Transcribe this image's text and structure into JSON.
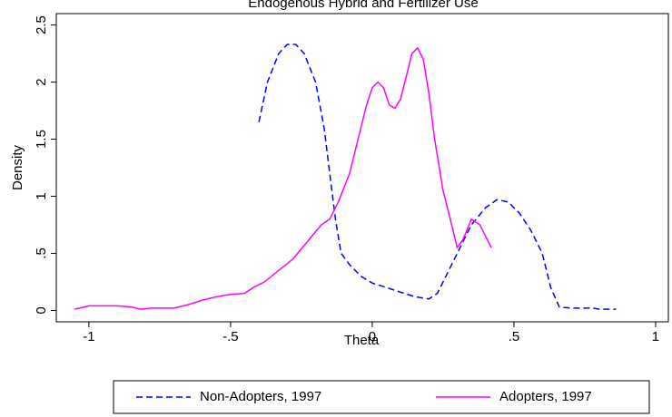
{
  "chart_data": {
    "type": "line",
    "title": "Endogenous Hybrid and Fertilizer Use",
    "x_label": "Theta",
    "y_label": "Density",
    "xlim": [
      -1.115,
      1.045
    ],
    "ylim": [
      -0.1,
      2.6
    ],
    "xticks": [
      -1,
      {
        "value": -0.5,
        "label": "-.5"
      },
      0,
      {
        "value": 0.5,
        "label": ".5"
      },
      1
    ],
    "yticks": [
      0,
      {
        "value": 0.5,
        "label": ".5"
      },
      1,
      1.5,
      2,
      2.5
    ],
    "series": [
      {
        "name": "Non-Adopters, 1997",
        "color": "#0000ff",
        "dash": true,
        "x": [
          -0.4,
          -0.37,
          -0.33,
          -0.3,
          -0.27,
          -0.24,
          -0.2,
          -0.17,
          -0.15,
          -0.13,
          -0.11,
          -0.08,
          -0.04,
          0,
          0.05,
          0.1,
          0.15,
          0.2,
          0.23,
          0.26,
          0.3,
          0.35,
          0.4,
          0.44,
          0.48,
          0.52,
          0.56,
          0.6,
          0.63,
          0.66,
          0.7,
          0.78,
          0.8,
          0.86
        ],
        "values": [
          1.65,
          2.0,
          2.25,
          2.33,
          2.33,
          2.25,
          2.0,
          1.6,
          1.2,
          0.8,
          0.5,
          0.4,
          0.3,
          0.24,
          0.2,
          0.16,
          0.12,
          0.1,
          0.15,
          0.3,
          0.5,
          0.75,
          0.9,
          0.97,
          0.95,
          0.85,
          0.7,
          0.5,
          0.2,
          0.03,
          0.02,
          0.02,
          0.01,
          0.01
        ]
      },
      {
        "name": "Adopters, 1997",
        "color": "#ff00ff",
        "dash": false,
        "x": [
          -1.05,
          -1.0,
          -0.9,
          -0.85,
          -0.82,
          -0.78,
          -0.7,
          -0.65,
          -0.6,
          -0.55,
          -0.5,
          -0.45,
          -0.42,
          -0.38,
          -0.33,
          -0.28,
          -0.23,
          -0.18,
          -0.15,
          -0.12,
          -0.08,
          -0.05,
          -0.02,
          0.0,
          0.02,
          0.04,
          0.06,
          0.08,
          0.1,
          0.12,
          0.14,
          0.16,
          0.18,
          0.2,
          0.22,
          0.25,
          0.28,
          0.3,
          0.32,
          0.35,
          0.38,
          0.4,
          0.42
        ],
        "values": [
          0.01,
          0.04,
          0.04,
          0.03,
          0.01,
          0.02,
          0.02,
          0.05,
          0.09,
          0.12,
          0.14,
          0.15,
          0.2,
          0.25,
          0.35,
          0.45,
          0.6,
          0.75,
          0.8,
          0.95,
          1.2,
          1.5,
          1.8,
          1.95,
          2.0,
          1.95,
          1.8,
          1.77,
          1.85,
          2.05,
          2.25,
          2.3,
          2.2,
          1.9,
          1.5,
          1.05,
          0.75,
          0.55,
          0.62,
          0.8,
          0.75,
          0.65,
          0.55
        ]
      }
    ]
  }
}
